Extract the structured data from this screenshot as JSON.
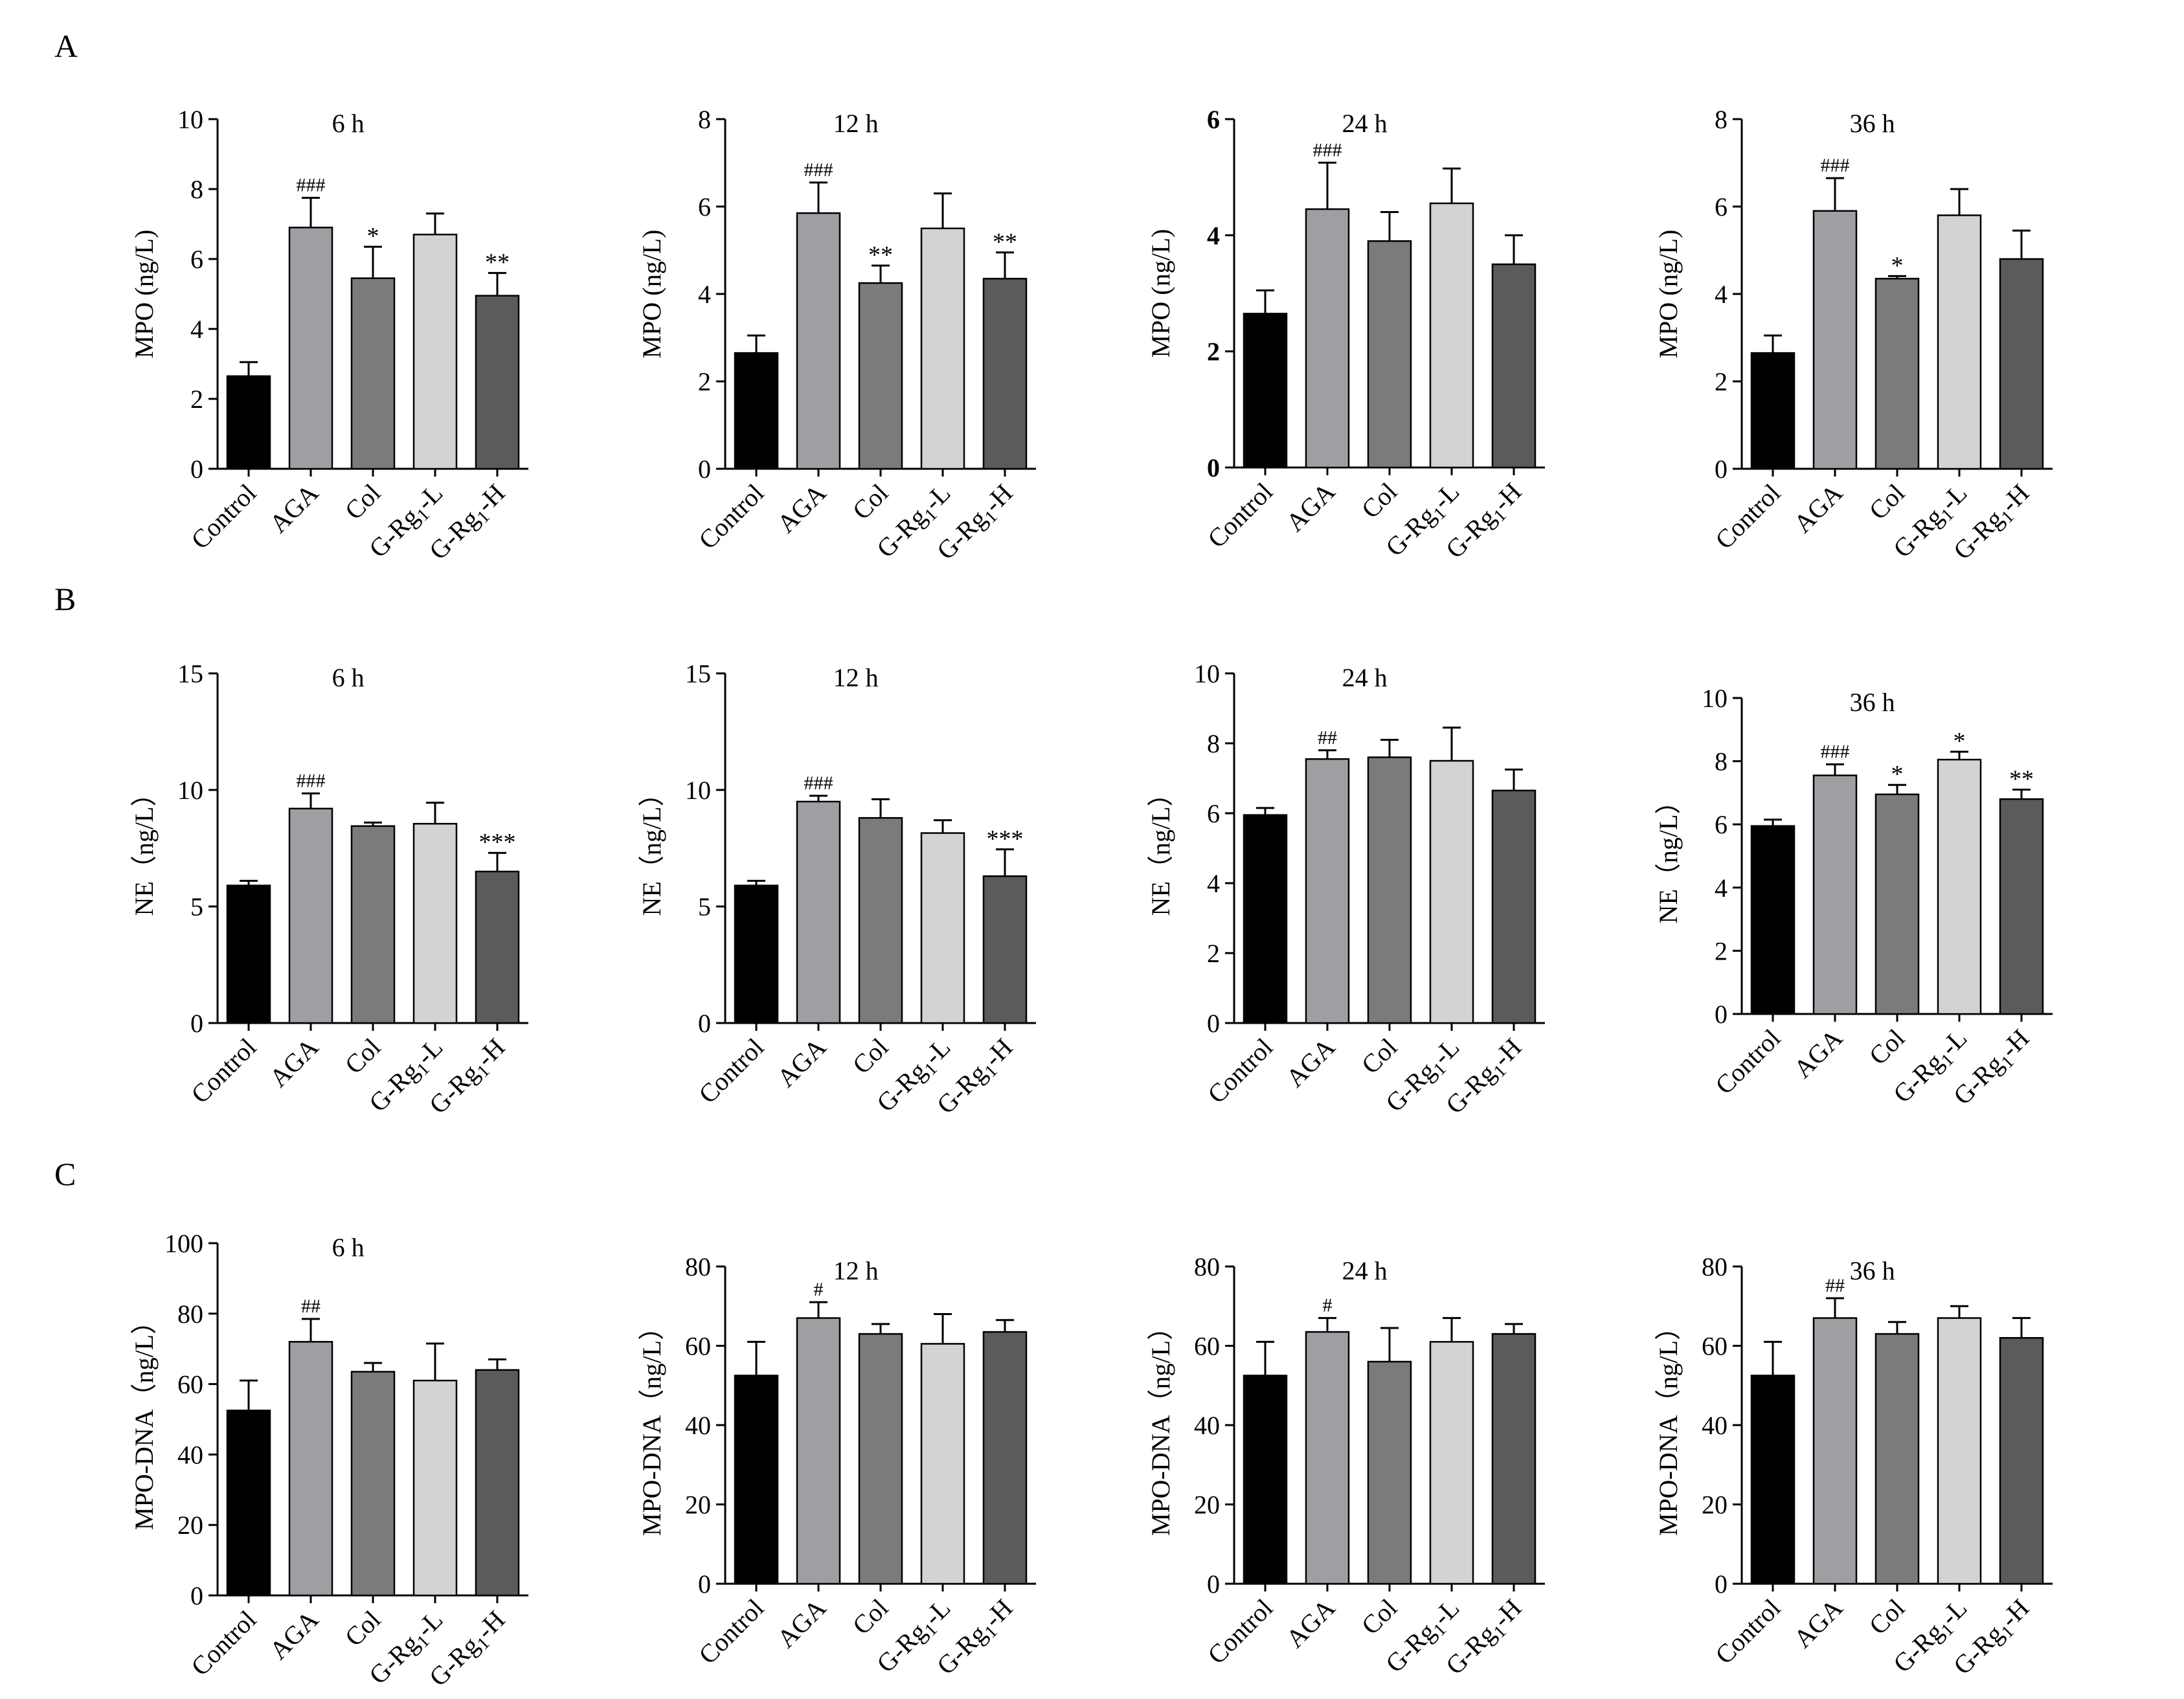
{
  "figure": {
    "panels": [
      {
        "label": "A"
      },
      {
        "label": "B"
      },
      {
        "label": "C"
      }
    ]
  },
  "colors": {
    "Control": "#000000",
    "AGA": "#9f9fa3",
    "Col": "#7b7b7b",
    "G-Rg1-L": "#d3d3d3",
    "G-Rg1-H": "#5b5b5b",
    "axis": "#000000"
  },
  "chart_data": [
    {
      "type": "bar",
      "panel": "A",
      "title": "6 h",
      "ylabel": "MPO (ng/L)",
      "ylim": [
        0,
        10
      ],
      "yticks": [
        0,
        2,
        4,
        6,
        8,
        10
      ],
      "categories": [
        "Control",
        "AGA",
        "Col",
        "G-Rg1-L",
        "G-Rg1-H"
      ],
      "values": [
        2.65,
        6.9,
        5.45,
        6.7,
        4.95
      ],
      "errors": [
        0.4,
        0.85,
        0.9,
        0.6,
        0.65
      ],
      "annotations": [
        "",
        "###",
        "*",
        "",
        "**"
      ]
    },
    {
      "type": "bar",
      "panel": "A",
      "title": "12 h",
      "ylabel": "MPO (ng/L)",
      "ylim": [
        0,
        8
      ],
      "yticks": [
        0,
        2,
        4,
        6,
        8
      ],
      "categories": [
        "Control",
        "AGA",
        "Col",
        "G-Rg1-L",
        "G-Rg1-H"
      ],
      "values": [
        2.65,
        5.85,
        4.25,
        5.5,
        4.35
      ],
      "errors": [
        0.4,
        0.7,
        0.4,
        0.8,
        0.6
      ],
      "annotations": [
        "",
        "###",
        "**",
        "",
        "**"
      ]
    },
    {
      "type": "bar",
      "panel": "A",
      "title": "24 h",
      "ylabel": "MPO (ng/L)",
      "ylim": [
        0,
        6
      ],
      "yticks": [
        0,
        2,
        4,
        6
      ],
      "bold_ticks": true,
      "categories": [
        "Control",
        "AGA",
        "Col",
        "G-Rg1-L",
        "G-Rg1-H"
      ],
      "values": [
        2.65,
        4.45,
        3.9,
        4.55,
        3.5
      ],
      "errors": [
        0.4,
        0.8,
        0.5,
        0.6,
        0.5
      ],
      "annotations": [
        "",
        "###",
        "",
        "",
        ""
      ]
    },
    {
      "type": "bar",
      "panel": "A",
      "title": "36 h",
      "ylabel": "MPO (ng/L)",
      "ylim": [
        0,
        8
      ],
      "yticks": [
        0,
        2,
        4,
        6,
        8
      ],
      "categories": [
        "Control",
        "AGA",
        "Col",
        "G-Rg1-L",
        "G-Rg1-H"
      ],
      "values": [
        2.65,
        5.9,
        4.35,
        5.8,
        4.8
      ],
      "errors": [
        0.4,
        0.75,
        0.06,
        0.6,
        0.65
      ],
      "annotations": [
        "",
        "###",
        "*",
        "",
        ""
      ]
    },
    {
      "type": "bar",
      "panel": "B",
      "title": "6 h",
      "ylabel": "NE（ng/L）",
      "ylim": [
        0,
        15
      ],
      "yticks": [
        0,
        5,
        10,
        15
      ],
      "categories": [
        "Control",
        "AGA",
        "Col",
        "G-Rg1-L",
        "G-Rg1-H"
      ],
      "values": [
        5.9,
        9.2,
        8.45,
        8.55,
        6.5
      ],
      "errors": [
        0.2,
        0.65,
        0.15,
        0.9,
        0.8
      ],
      "annotations": [
        "",
        "###",
        "",
        "",
        "***"
      ]
    },
    {
      "type": "bar",
      "panel": "B",
      "title": "12 h",
      "ylabel": "NE（ng/L）",
      "ylim": [
        0,
        15
      ],
      "yticks": [
        0,
        5,
        10,
        15
      ],
      "categories": [
        "Control",
        "AGA",
        "Col",
        "G-Rg1-L",
        "G-Rg1-H"
      ],
      "values": [
        5.9,
        9.5,
        8.8,
        8.15,
        6.3
      ],
      "errors": [
        0.2,
        0.25,
        0.8,
        0.55,
        1.15
      ],
      "annotations": [
        "",
        "###",
        "",
        "",
        "***"
      ]
    },
    {
      "type": "bar",
      "panel": "B",
      "title": "24 h",
      "ylabel": "NE（ng/L）",
      "ylim": [
        0,
        10
      ],
      "yticks": [
        0,
        2,
        4,
        6,
        8,
        10
      ],
      "categories": [
        "Control",
        "AGA",
        "Col",
        "G-Rg1-L",
        "G-Rg1-H"
      ],
      "values": [
        5.95,
        7.55,
        7.6,
        7.5,
        6.65
      ],
      "errors": [
        0.2,
        0.25,
        0.5,
        0.95,
        0.6
      ],
      "annotations": [
        "",
        "##",
        "",
        "",
        ""
      ]
    },
    {
      "type": "bar",
      "panel": "B",
      "title": "36 h",
      "ylabel": "NE（ng/L）",
      "ylim": [
        0,
        10
      ],
      "yticks": [
        0,
        2,
        4,
        6,
        8,
        10
      ],
      "categories": [
        "Control",
        "AGA",
        "Col",
        "G-Rg1-L",
        "G-Rg1-H"
      ],
      "values": [
        5.95,
        7.55,
        6.95,
        8.05,
        6.8
      ],
      "errors": [
        0.2,
        0.35,
        0.3,
        0.25,
        0.3
      ],
      "annotations": [
        "",
        "###",
        "*",
        "*",
        "**"
      ]
    },
    {
      "type": "bar",
      "panel": "C",
      "title": "6 h",
      "ylabel": "MPO-DNA（ng/L）",
      "ylim": [
        0,
        100
      ],
      "yticks": [
        0,
        20,
        40,
        60,
        80,
        100
      ],
      "categories": [
        "Control",
        "AGA",
        "Col",
        "G-Rg1-L",
        "G-Rg1-H"
      ],
      "values": [
        52.5,
        72,
        63.5,
        61,
        64
      ],
      "errors": [
        8.5,
        6.5,
        2.5,
        10.5,
        3
      ],
      "annotations": [
        "",
        "##",
        "",
        "",
        ""
      ]
    },
    {
      "type": "bar",
      "panel": "C",
      "title": "12 h",
      "ylabel": "MPO-DNA（ng/L）",
      "ylim": [
        0,
        80
      ],
      "yticks": [
        0,
        20,
        40,
        60,
        80
      ],
      "categories": [
        "Control",
        "AGA",
        "Col",
        "G-Rg1-L",
        "G-Rg1-H"
      ],
      "values": [
        52.5,
        67,
        63,
        60.5,
        63.5
      ],
      "errors": [
        8.5,
        4,
        2.5,
        7.5,
        3
      ],
      "annotations": [
        "",
        "#",
        "",
        "",
        ""
      ]
    },
    {
      "type": "bar",
      "panel": "C",
      "title": "24 h",
      "ylabel": "MPO-DNA（ng/L）",
      "ylim": [
        0,
        80
      ],
      "yticks": [
        0,
        20,
        40,
        60,
        80
      ],
      "categories": [
        "Control",
        "AGA",
        "Col",
        "G-Rg1-L",
        "G-Rg1-H"
      ],
      "values": [
        52.5,
        63.5,
        56,
        61,
        63
      ],
      "errors": [
        8.5,
        3.5,
        8.5,
        6,
        2.5
      ],
      "annotations": [
        "",
        "#",
        "",
        "",
        ""
      ]
    },
    {
      "type": "bar",
      "panel": "C",
      "title": "36 h",
      "ylabel": "MPO-DNA（ng/L）",
      "ylim": [
        0,
        80
      ],
      "yticks": [
        0,
        20,
        40,
        60,
        80
      ],
      "categories": [
        "Control",
        "AGA",
        "Col",
        "G-Rg1-L",
        "G-Rg1-H"
      ],
      "values": [
        52.5,
        67,
        63,
        67,
        62
      ],
      "errors": [
        8.5,
        5,
        3,
        3,
        5
      ],
      "annotations": [
        "",
        "##",
        "",
        "",
        ""
      ]
    }
  ]
}
